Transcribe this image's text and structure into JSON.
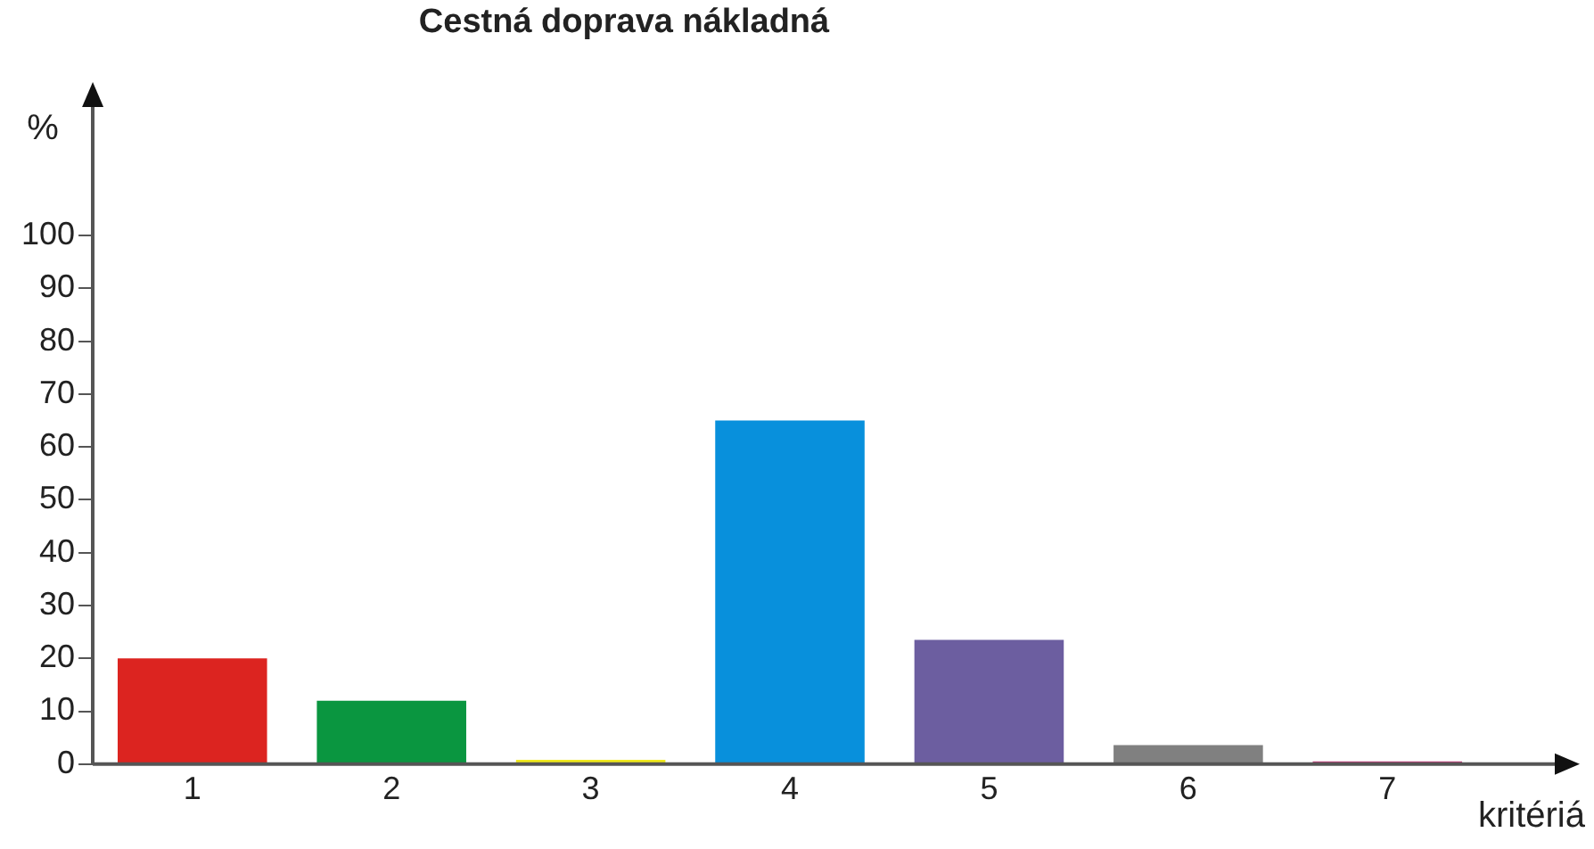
{
  "chart_data": {
    "type": "bar",
    "title": "Cestná doprava nákladná",
    "xlabel": "kritériá",
    "ylabel": "%",
    "categories": [
      "1",
      "2",
      "3",
      "4",
      "5",
      "6",
      "7"
    ],
    "values": [
      20,
      12,
      0.8,
      65,
      23.5,
      3.6,
      0.5
    ],
    "colors": [
      "#dc2420",
      "#0a9640",
      "#f0e81c",
      "#0890dc",
      "#6c5ea0",
      "#808080",
      "#c0407c"
    ],
    "ylim": [
      0,
      125
    ],
    "yticks": [
      0,
      10,
      20,
      30,
      40,
      50,
      60,
      70,
      80,
      90,
      100
    ],
    "grid": false,
    "legend": false
  }
}
